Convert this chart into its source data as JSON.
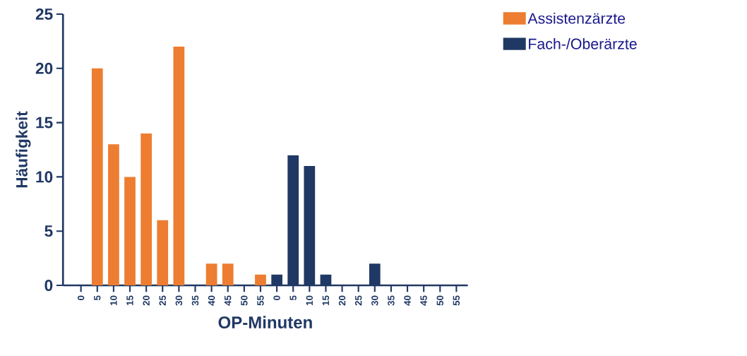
{
  "chart_data": {
    "type": "bar",
    "xlabel": "OP-Minuten",
    "ylabel": "Häufigkeit",
    "categories": [
      "0",
      "5",
      "10",
      "15",
      "20",
      "25",
      "30",
      "35",
      "40",
      "45",
      "50",
      "55",
      "0",
      "5",
      "10",
      "15",
      "20",
      "25",
      "30",
      "35",
      "40",
      "45",
      "50",
      "55"
    ],
    "series": [
      {
        "name": "Assistenzärzte",
        "color": "#ed7d31",
        "values": [
          0,
          20,
          13,
          10,
          14,
          6,
          22,
          0,
          2,
          2,
          0,
          1,
          null,
          null,
          null,
          null,
          null,
          null,
          null,
          null,
          null,
          null,
          null,
          null
        ]
      },
      {
        "name": "Fach-/Oberärzte",
        "color": "#203864",
        "values": [
          null,
          null,
          null,
          null,
          null,
          null,
          null,
          null,
          null,
          null,
          null,
          null,
          1,
          12,
          11,
          1,
          0,
          0,
          2,
          0,
          0,
          0,
          0,
          0
        ]
      }
    ],
    "ylim": [
      0,
      25
    ],
    "yticks": [
      0,
      5,
      10,
      15,
      20,
      25
    ],
    "grid": false,
    "legend": "top right"
  }
}
